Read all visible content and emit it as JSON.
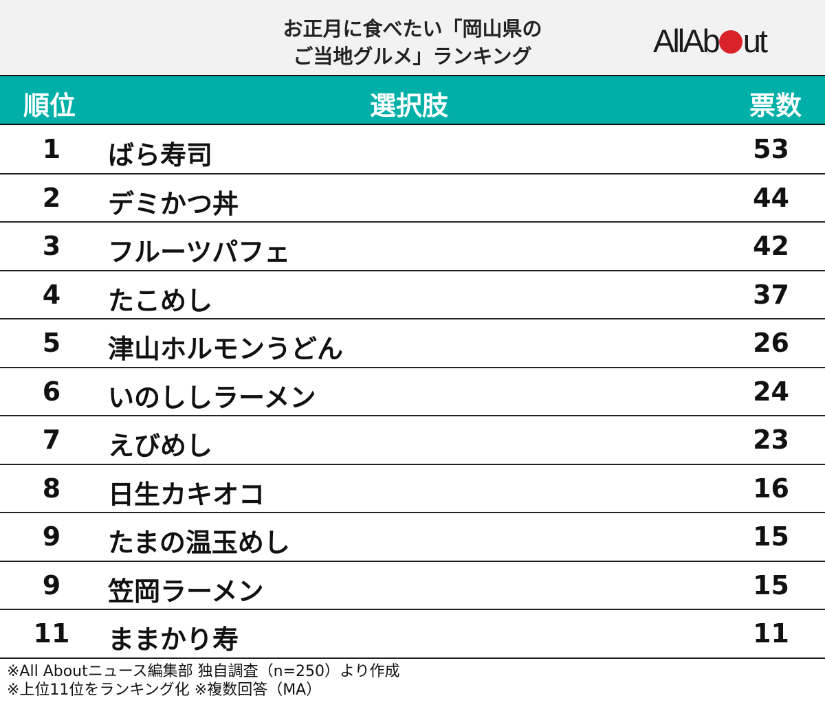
{
  "header": {
    "title_line1": "お正月に食べたい「岡山県の",
    "title_line2": "ご当地グルメ」ランキング",
    "logo_text": "All About"
  },
  "colors": {
    "header_band": "#00b0a8",
    "logo_dot": "#d9222a",
    "title_bg": "#f2f2f2"
  },
  "chart_data": {
    "type": "table",
    "columns": [
      "順位",
      "選択肢",
      "票数"
    ],
    "rows": [
      {
        "rank": "1",
        "name": "ばら寿司",
        "votes": 53
      },
      {
        "rank": "2",
        "name": "デミかつ丼",
        "votes": 44
      },
      {
        "rank": "3",
        "name": "フルーツパフェ",
        "votes": 42
      },
      {
        "rank": "4",
        "name": "たこめし",
        "votes": 37
      },
      {
        "rank": "5",
        "name": "津山ホルモンうどん",
        "votes": 26
      },
      {
        "rank": "6",
        "name": "いのししラーメン",
        "votes": 24
      },
      {
        "rank": "7",
        "name": "えびめし",
        "votes": 23
      },
      {
        "rank": "8",
        "name": "日生カキオコ",
        "votes": 16
      },
      {
        "rank": "9",
        "name": "たまの温玉めし",
        "votes": 15
      },
      {
        "rank": "9",
        "name": "笠岡ラーメン",
        "votes": 15
      },
      {
        "rank": "11",
        "name": "ままかり寿",
        "votes": 11
      }
    ]
  },
  "footer": {
    "line1": "※All Aboutニュース編集部 独自調査（n=250）より作成",
    "line2": "※上位11位をランキング化 ※複数回答（MA）"
  }
}
